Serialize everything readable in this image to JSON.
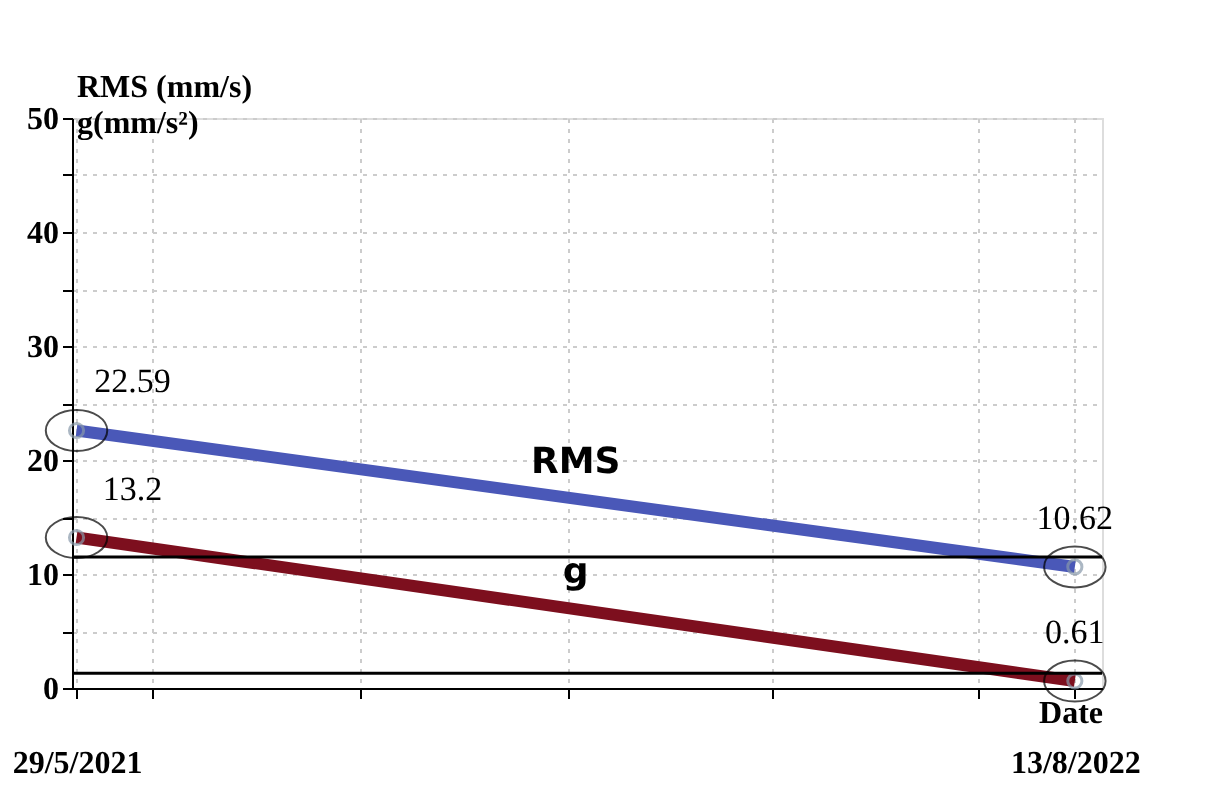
{
  "chart_data": {
    "type": "line",
    "xlabel": "Date",
    "ylabel": "RMS (mm/s)\ng(mm/s²)",
    "x": [
      "2021-05-29",
      "2022-08-13"
    ],
    "series": [
      {
        "name": "RMS",
        "color": "#4a58b8",
        "values": [
          22.59,
          10.62
        ],
        "value_labels": [
          "22.59",
          "10.62"
        ]
      },
      {
        "name": "g",
        "color": "#7d0f1e",
        "values": [
          13.2,
          0.61
        ],
        "value_labels": [
          "13.2",
          "0.61"
        ]
      }
    ],
    "xlim": [
      "2021-05-27",
      "2022-08-25"
    ],
    "xticks": [
      {
        "value": "2021-05-29",
        "label": "29/5/2021"
      },
      {
        "value": "2021-07-01",
        "label": null
      },
      {
        "value": "2021-10-01",
        "label": null
      },
      {
        "value": "2022-01-01",
        "label": null
      },
      {
        "value": "2022-04-01",
        "label": null
      },
      {
        "value": "2022-07-01",
        "label": null
      },
      {
        "value": "2022-08-13",
        "label": "13/8/2022"
      }
    ],
    "ylim": [
      0,
      50
    ],
    "yticks": [
      0,
      {
        "value": 5,
        "label": null
      },
      10,
      {
        "value": 15,
        "label": null
      },
      20,
      {
        "value": 25,
        "label": null
      },
      30,
      {
        "value": 35,
        "label": null
      },
      40,
      {
        "value": 45,
        "label": null
      },
      50
    ],
    "ref_lines": [
      {
        "axis": "y",
        "value": 11.5,
        "label": null,
        "color": "#000000"
      },
      {
        "axis": "y",
        "value": 1.3,
        "label": null,
        "color": "#000000"
      }
    ],
    "grid": true,
    "marker": "circle",
    "line_style": "solid"
  }
}
